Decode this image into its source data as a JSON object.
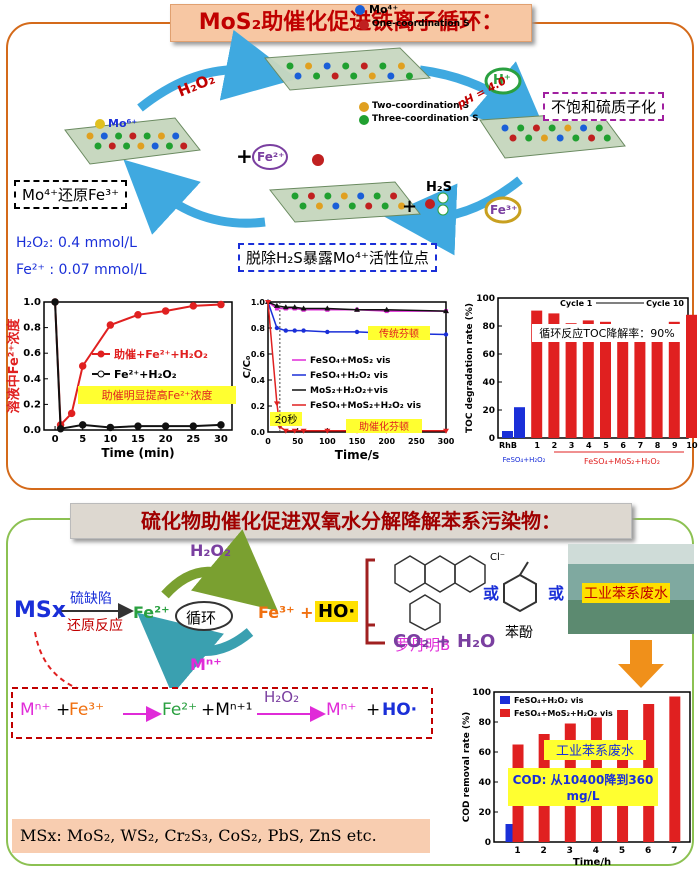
{
  "top": {
    "title": "MoS₂助催化促进铁离子循环：",
    "legend": {
      "mo4": "Mo⁴⁺",
      "one_s": "One-coordination S",
      "two_s": "Two-coordination S",
      "three_s": "Three-coordination S"
    },
    "mo6": "Mo⁶⁺",
    "h2o2_arrow": "H₂O₂",
    "hplus": "H⁺",
    "ph": "pH = 4.0",
    "plus": "+",
    "fe2": "Fe²⁺",
    "fe3": "Fe³⁺",
    "h2s": "H₂S",
    "box_unsat": "不饱和硫质子化",
    "box_reduce": "Mo⁴⁺还原Fe³⁺",
    "box_remove": "脱除H₂S暴露Mo⁴⁺活性位点",
    "cond_h2o2": "H₂O₂: 0.4 mmol/L",
    "cond_fe2": "Fe²⁺ : 0.07 mmol/L"
  },
  "chart1": {
    "type": "line",
    "ylabel": "溶液中Fe²⁺浓度",
    "xlabel": "Time (min)",
    "xlim": [
      -2,
      32
    ],
    "ylim": [
      0,
      1.0
    ],
    "xticks": [
      "0",
      "5",
      "10",
      "15",
      "20",
      "25",
      "30"
    ],
    "yticks": [
      "0.0",
      "0.2",
      "0.4",
      "0.6",
      "0.8",
      "1.0"
    ],
    "note": "助催明显提高Fe²⁺浓度",
    "series": [
      {
        "name": "助催+Fe²⁺+H₂O₂",
        "color": "#e02020",
        "x": [
          0,
          1,
          3,
          5,
          10,
          15,
          20,
          25,
          30
        ],
        "y": [
          1.0,
          0.04,
          0.13,
          0.5,
          0.82,
          0.9,
          0.93,
          0.97,
          0.98
        ]
      },
      {
        "name": "Fe²⁺+H₂O₂",
        "color": "#111111",
        "x": [
          0,
          1,
          5,
          10,
          15,
          20,
          25,
          30
        ],
        "y": [
          1.0,
          0.01,
          0.04,
          0.02,
          0.03,
          0.03,
          0.03,
          0.04
        ]
      }
    ]
  },
  "chart2": {
    "type": "line",
    "ylabel": "C/C₀",
    "xlabel": "Time/s",
    "xlim": [
      0,
      300
    ],
    "ylim": [
      0,
      1.0
    ],
    "xticks": [
      "0",
      "50",
      "100",
      "150",
      "200",
      "250",
      "300"
    ],
    "yticks": [
      "0.0",
      "0.2",
      "0.4",
      "0.6",
      "0.8",
      "1.0"
    ],
    "note_top": "传统芬顿",
    "note_bottom": "助催化芬顿",
    "note_20s": "20秒",
    "series": [
      {
        "name": "FeSO₄+MoS₂ vis",
        "color": "#e02bd8",
        "x": [
          0,
          15,
          30,
          45,
          60,
          100,
          150,
          200,
          300
        ],
        "y": [
          1.0,
          0.95,
          0.95,
          0.95,
          0.94,
          0.94,
          0.94,
          0.93,
          0.93
        ]
      },
      {
        "name": "FeSO₄+H₂O₂ vis",
        "color": "#1a2fd8",
        "x": [
          0,
          15,
          30,
          45,
          60,
          100,
          150,
          200,
          300
        ],
        "y": [
          1.0,
          0.8,
          0.78,
          0.78,
          0.78,
          0.77,
          0.77,
          0.76,
          0.75
        ]
      },
      {
        "name": "MoS₂+H₂O₂+vis",
        "color": "#111111",
        "x": [
          0,
          15,
          30,
          45,
          60,
          100,
          150,
          200,
          300
        ],
        "y": [
          1.0,
          0.97,
          0.96,
          0.96,
          0.95,
          0.95,
          0.94,
          0.94,
          0.93
        ]
      },
      {
        "name": "FeSO₄+MoS₂+H₂O₂ vis",
        "color": "#e02020",
        "x": [
          0,
          15,
          20,
          30,
          45,
          60,
          100,
          150,
          200,
          300
        ],
        "y": [
          1.0,
          0.22,
          0.04,
          0.01,
          0.01,
          0.01,
          0.01,
          0.01,
          0.01,
          0.01
        ]
      }
    ]
  },
  "chart3": {
    "type": "bar",
    "ylabel": "TOC degradation rate (%)",
    "ylim": [
      0,
      100
    ],
    "yticks": [
      "0",
      "20",
      "40",
      "60",
      "80",
      "100"
    ],
    "categories": [
      "RhB",
      "1",
      "2",
      "3",
      "4",
      "5",
      "6",
      "7",
      "8",
      "9",
      "10"
    ],
    "values": [
      5,
      91,
      89,
      82,
      84,
      83,
      79,
      80,
      80,
      83,
      88
    ],
    "blue_value": 22,
    "blue_label": "FeSO₄+H₂O₂",
    "group_label": "FeSO₄+MoS₂+H₂O₂",
    "cycle1": "Cycle 1",
    "cycle10": "Cycle 10",
    "note": "循环反应TOC降解率：90%"
  },
  "bottom": {
    "title": "硫化物助催化促进双氧水分解降解苯系污染物：",
    "msx": "MSx",
    "s_defect": "硫缺陷",
    "reduce": "还原反应",
    "fe2": "Fe²⁺",
    "cycle": "循环",
    "fe3": "Fe³⁺ +",
    "ho": "HO·",
    "h2o2": "H₂O₂",
    "mn": "Mⁿ⁺",
    "rhb": "罗丹明B",
    "or1": "或",
    "or2": "或",
    "phenol": "苯酚",
    "wastewater": "工业苯系废水",
    "co2": "CO₂ + H₂O",
    "cl": "Cl⁻",
    "eq_mn": "Mⁿ⁺",
    "eq_plus1": "+",
    "eq_fe3": "Fe³⁺",
    "eq_fe2": "Fe²⁺",
    "eq_plus2": "+Mⁿ⁺¹",
    "eq_h2o2": "H₂O₂",
    "eq_mn2": "Mⁿ⁺",
    "eq_plus3": "+",
    "eq_ho": "HO·",
    "msx_list": "MSx: MoS₂, WS₂, Cr₂S₃, CoS₂, PbS, ZnS etc."
  },
  "chart4": {
    "type": "bar",
    "ylabel": "COD removal rate (%)",
    "xlabel": "Time/h",
    "ylim": [
      0,
      100
    ],
    "yticks": [
      "0",
      "20",
      "40",
      "60",
      "80",
      "100"
    ],
    "categories": [
      "1",
      "2",
      "3",
      "4",
      "5",
      "6",
      "7"
    ],
    "series": [
      {
        "name": "FeSO₄+H₂O₂ vis",
        "color": "#1a2fd8",
        "values": [
          12,
          null,
          null,
          null,
          null,
          null,
          null
        ]
      },
      {
        "name": "FeSO₄+MoS₂+H₂O₂ vis",
        "color": "#e02020",
        "values": [
          65,
          72,
          79,
          83,
          88,
          92,
          97
        ]
      }
    ],
    "note1": "工业苯系废水",
    "note2": "COD: 从10400降到360 mg/L"
  }
}
